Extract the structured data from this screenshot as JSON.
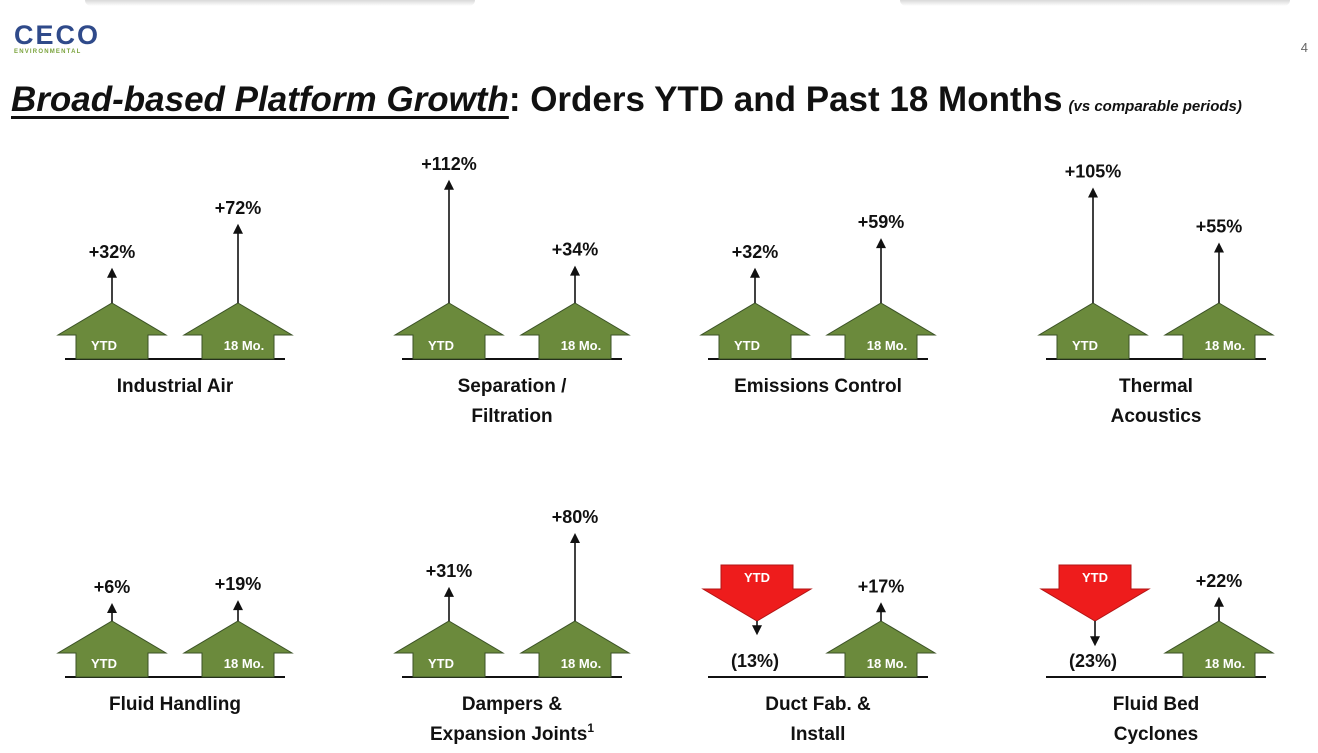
{
  "logo": {
    "name": "CECO",
    "subtitle": "ENVIRONMENTAL"
  },
  "page_number": "4",
  "title": {
    "emphasis": "Broad-based Platform Growth",
    "rest": ": Orders YTD and Past 18 Months",
    "note": "(vs comparable periods)"
  },
  "colors": {
    "up": "#6b8a3c",
    "down": "#ee1c1c",
    "text": "#111111"
  },
  "chart_data": [
    {
      "type": "bar",
      "title_lines": [
        "Industrial Air"
      ],
      "categories": [
        "YTD",
        "18 Mo."
      ],
      "values": [
        32,
        72
      ],
      "labels": [
        "+32%",
        "+72%"
      ]
    },
    {
      "type": "bar",
      "title_lines": [
        "Separation /",
        "Filtration"
      ],
      "categories": [
        "YTD",
        "18 Mo."
      ],
      "values": [
        112,
        34
      ],
      "labels": [
        "+112%",
        "+34%"
      ]
    },
    {
      "type": "bar",
      "title_lines": [
        "Emissions Control"
      ],
      "categories": [
        "YTD",
        "18 Mo."
      ],
      "values": [
        32,
        59
      ],
      "labels": [
        "+32%",
        "+59%"
      ]
    },
    {
      "type": "bar",
      "title_lines": [
        "Thermal",
        "Acoustics"
      ],
      "categories": [
        "YTD",
        "18 Mo."
      ],
      "values": [
        105,
        55
      ],
      "labels": [
        "+105%",
        "+55%"
      ]
    },
    {
      "type": "bar",
      "title_lines": [
        "Fluid Handling"
      ],
      "categories": [
        "YTD",
        "18 Mo."
      ],
      "values": [
        6,
        19
      ],
      "labels": [
        "+6%",
        "+19%"
      ]
    },
    {
      "type": "bar",
      "title_lines": [
        "Dampers &",
        "Expansion Joints"
      ],
      "footnote": "1",
      "categories": [
        "YTD",
        "18 Mo."
      ],
      "values": [
        31,
        80
      ],
      "labels": [
        "+31%",
        "+80%"
      ]
    },
    {
      "type": "bar",
      "title_lines": [
        "Duct Fab. &",
        "Install"
      ],
      "categories": [
        "YTD",
        "18 Mo."
      ],
      "values": [
        -13,
        17
      ],
      "labels": [
        "(13%)",
        "+17%"
      ]
    },
    {
      "type": "bar",
      "title_lines": [
        "Fluid Bed",
        "Cyclones"
      ],
      "categories": [
        "YTD",
        "18 Mo."
      ],
      "values": [
        -23,
        22
      ],
      "labels": [
        "(23%)",
        "+22%"
      ]
    }
  ]
}
